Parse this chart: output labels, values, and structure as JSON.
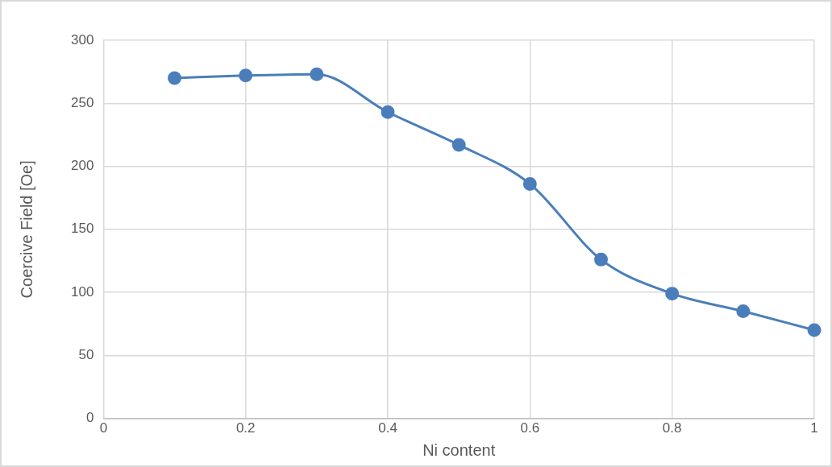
{
  "chart_data": {
    "type": "line",
    "xlabel": "Ni content",
    "ylabel": "Coercive Field [Oe]",
    "x": [
      0.1,
      0.2,
      0.3,
      0.4,
      0.5,
      0.6,
      0.7,
      0.8,
      0.9,
      1
    ],
    "series": [
      {
        "color": "#4a7ebb",
        "values": [
          270,
          272,
          273,
          243,
          217,
          186,
          126,
          99,
          85,
          70
        ]
      }
    ],
    "xlim": [
      0,
      1
    ],
    "xticks": [
      0,
      0.2,
      0.4,
      0.6,
      0.8,
      1
    ],
    "ylim": [
      0,
      300
    ],
    "yticks": [
      0,
      50,
      100,
      150,
      200,
      250,
      300
    ],
    "grid": true,
    "legend": false,
    "marker": "circle",
    "line_style": "solid"
  }
}
